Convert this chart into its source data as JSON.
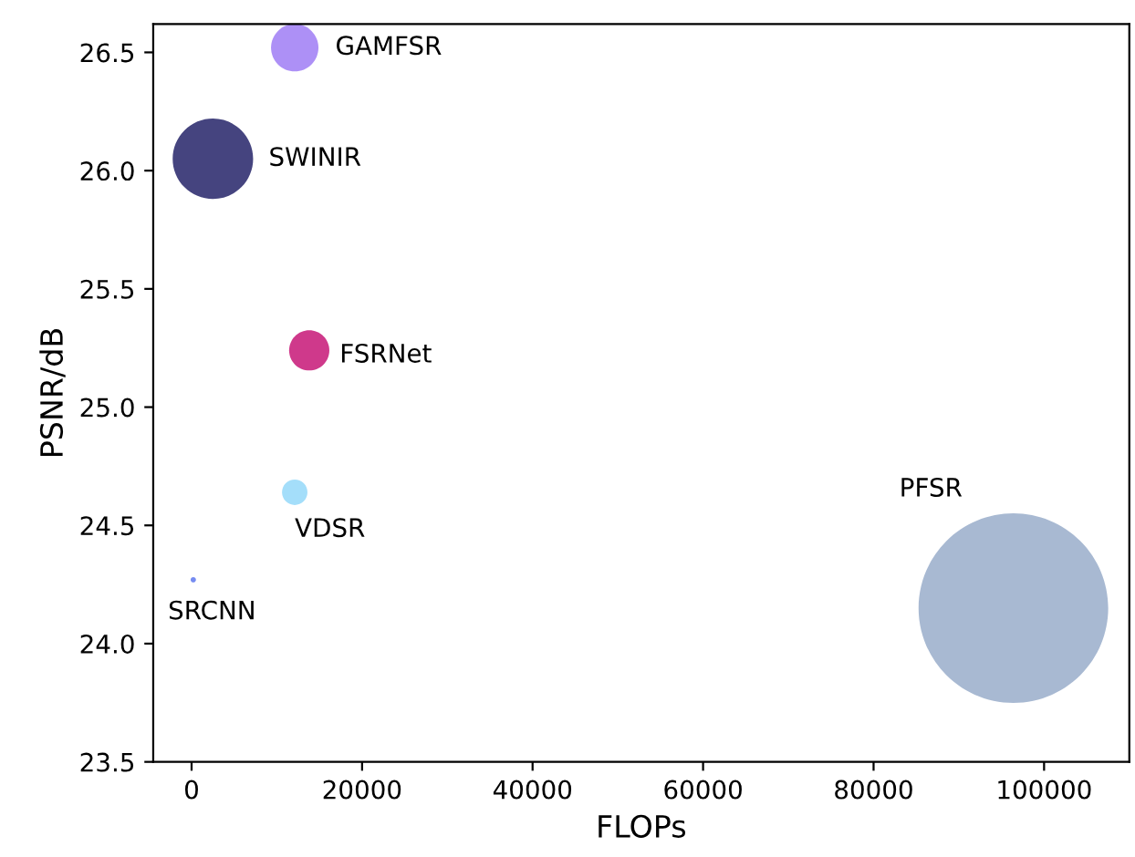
{
  "chart_data": {
    "type": "bubble",
    "xlabel": "FLOPs",
    "ylabel": "PSNR/dB",
    "xlim": [
      -4500,
      110000
    ],
    "xticks": [
      0,
      20000,
      40000,
      60000,
      80000,
      100000
    ],
    "ylim": [
      23.5,
      26.62
    ],
    "yticks": [
      23.5,
      {
        "value": 24,
        "label": "24.0"
      },
      24.5,
      {
        "value": 25,
        "label": "25.0"
      },
      25.5,
      {
        "value": 26,
        "label": "26.0"
      },
      26.5
    ],
    "grid": false,
    "legend": false,
    "series": [
      {
        "name": "GAMFSR",
        "color": "#a98af5",
        "x": [
          12100
        ],
        "values": [
          26.52
        ],
        "sizes": [
          0.0625
        ]
      },
      {
        "name": "SWINIR",
        "color": "#3b3a78",
        "x": [
          2500
        ],
        "values": [
          26.05
        ],
        "sizes": [
          0.18
        ]
      },
      {
        "name": "FSRNet",
        "color": "#cc2e85",
        "x": [
          13800
        ],
        "values": [
          25.24
        ],
        "sizes": [
          0.045
        ]
      },
      {
        "name": "VDSR",
        "color": "#9fdcfa",
        "x": [
          12100
        ],
        "values": [
          24.64
        ],
        "sizes": [
          0.018
        ]
      },
      {
        "name": "SRCNN",
        "color": "#6f86f0",
        "x": [
          200
        ],
        "values": [
          24.27
        ],
        "sizes": [
          0.0008
        ]
      },
      {
        "name": "PFSR",
        "color": "#a3b5d0",
        "x": [
          96400
        ],
        "values": [
          24.15
        ],
        "sizes": [
          1
        ]
      }
    ]
  }
}
